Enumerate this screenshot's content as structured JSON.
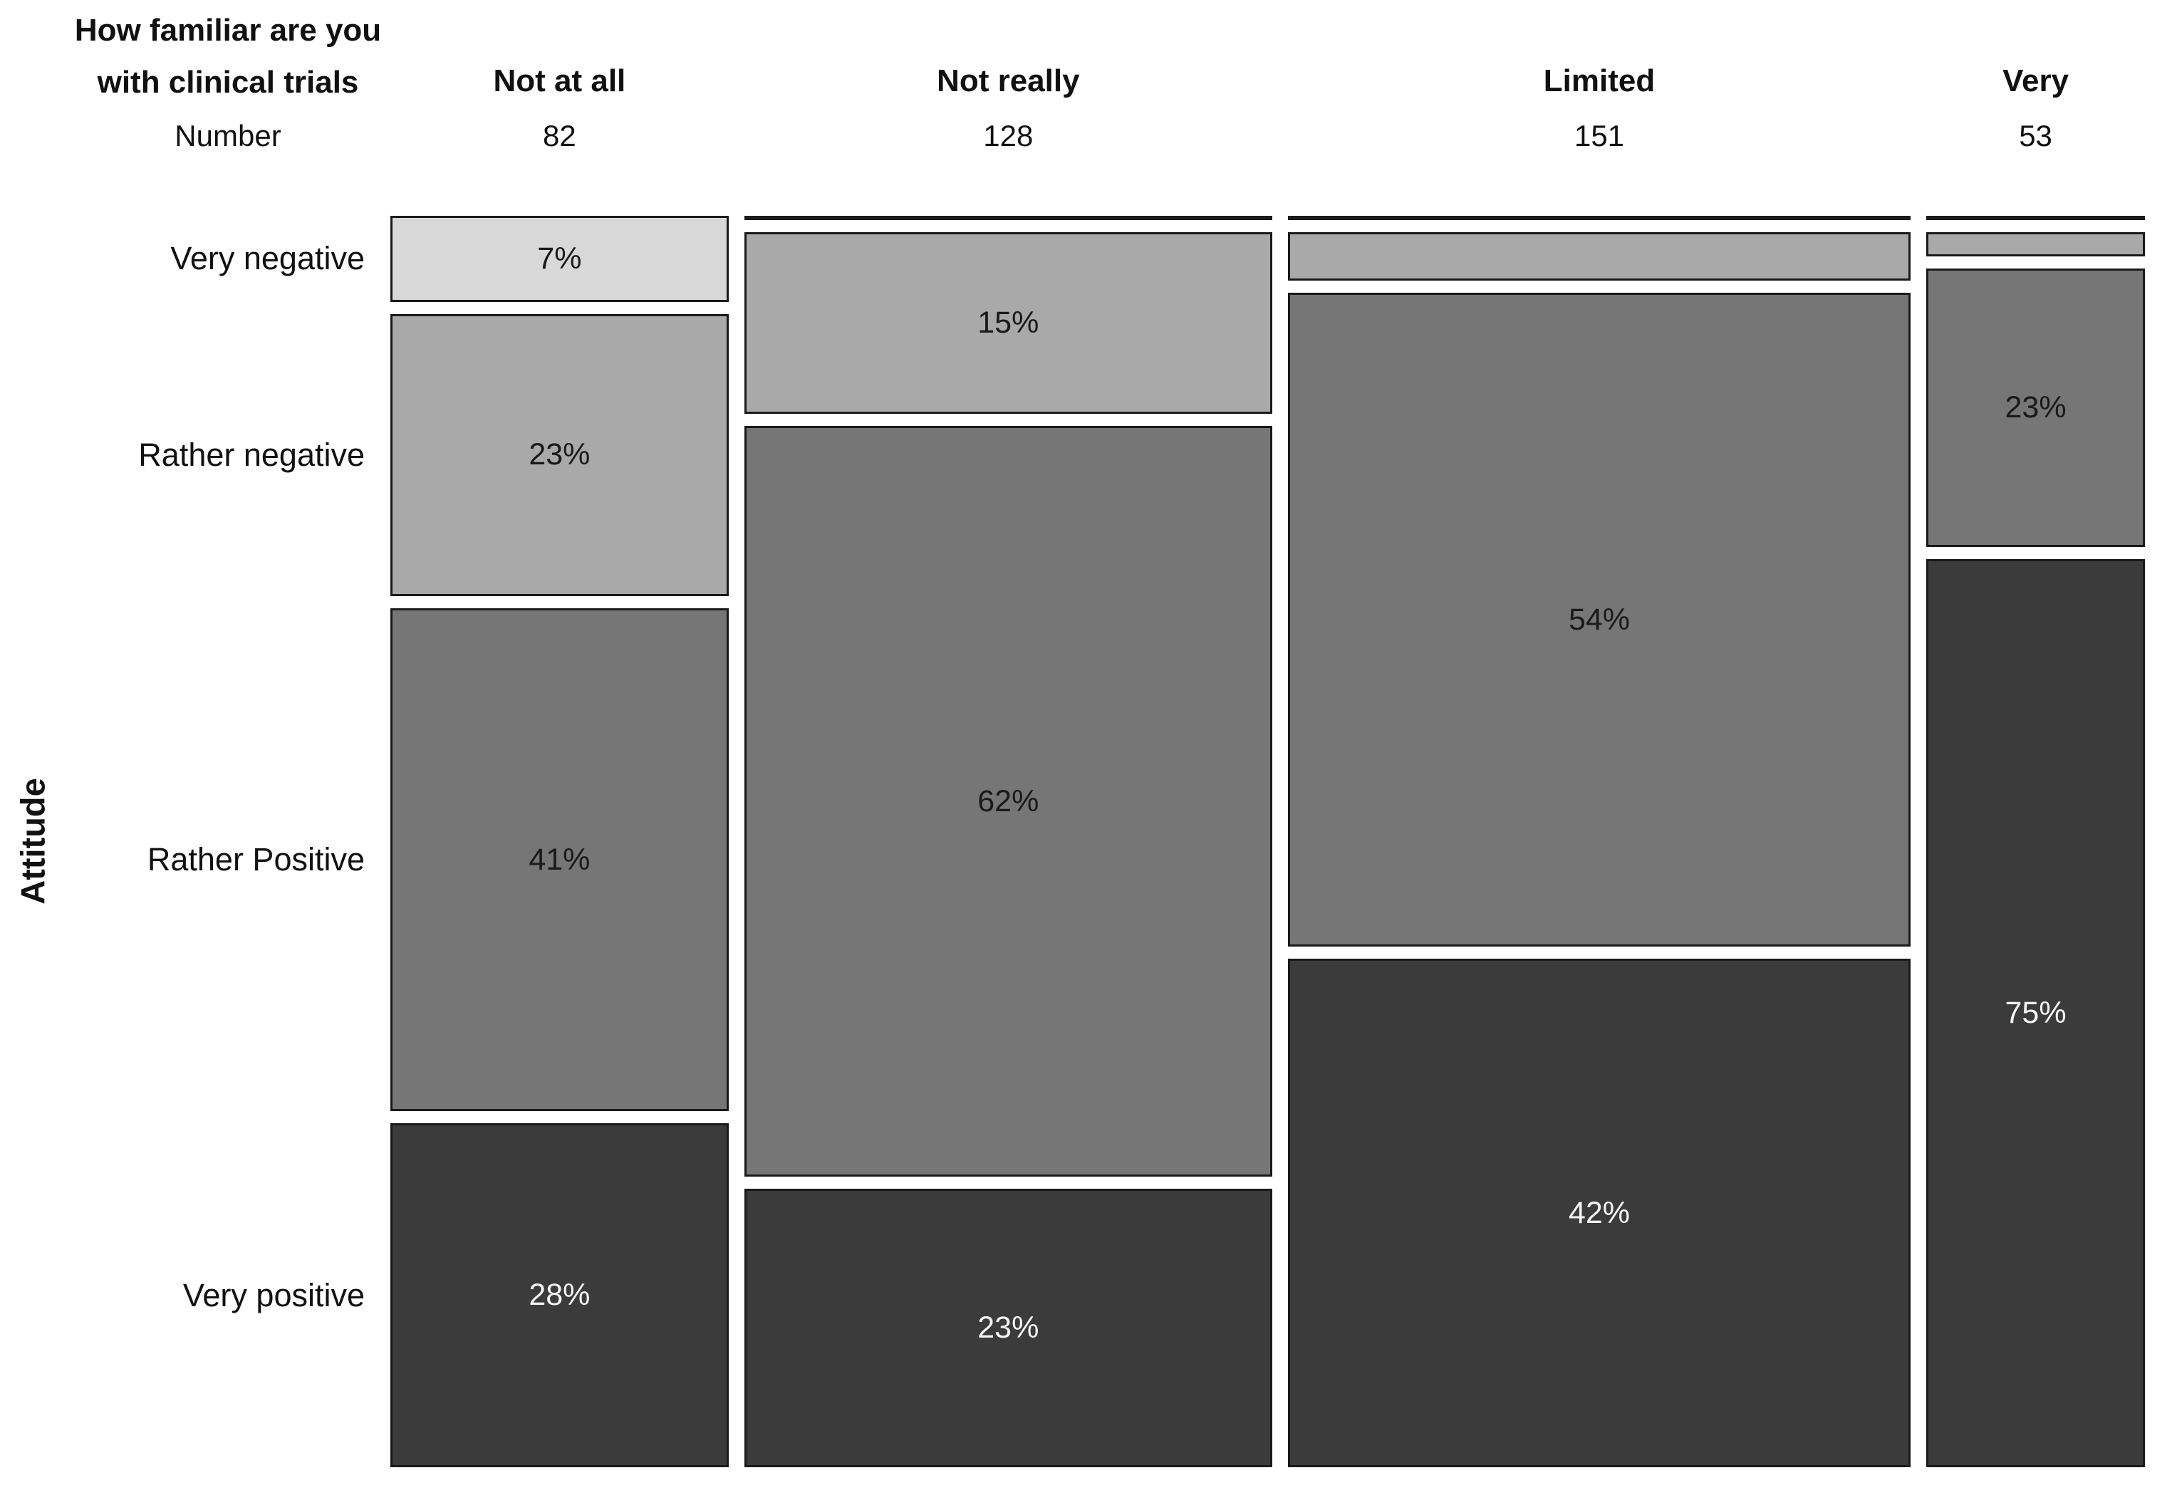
{
  "chart_data": {
    "type": "mosaic",
    "title_lines": [
      "How familiar are you",
      "with clinical trials"
    ],
    "number_label": "Number",
    "ylabel": "Attitude",
    "grid": false,
    "legend_position": "none",
    "rows": [
      {
        "name": "Very negative",
        "color": "#d8d8d8",
        "text_color": "#1a1a1a"
      },
      {
        "name": "Rather negative",
        "color": "#a9a9a9",
        "text_color": "#1a1a1a"
      },
      {
        "name": "Rather Positive",
        "color": "#767676",
        "text_color": "#1a1a1a"
      },
      {
        "name": "Very positive",
        "color": "#3b3b3b",
        "text_color": "#f5f5f5"
      }
    ],
    "columns": [
      {
        "label": "Not at all",
        "count": 82,
        "cells": [
          {
            "percent": 7,
            "label": "7%"
          },
          {
            "percent": 23,
            "label": "23%"
          },
          {
            "percent": 41,
            "label": "41%"
          },
          {
            "percent": 28,
            "label": "28%"
          }
        ]
      },
      {
        "label": "Not really",
        "count": 128,
        "cells": [
          {
            "percent": 0,
            "label": null
          },
          {
            "percent": 15,
            "label": "15%"
          },
          {
            "percent": 62,
            "label": "62%"
          },
          {
            "percent": 23,
            "label": "23%"
          }
        ]
      },
      {
        "label": "Limited",
        "count": 151,
        "cells": [
          {
            "percent": 0,
            "label": null
          },
          {
            "percent": 4,
            "label": null
          },
          {
            "percent": 54,
            "label": "54%"
          },
          {
            "percent": 42,
            "label": "42%"
          }
        ]
      },
      {
        "label": "Very",
        "count": 53,
        "cells": [
          {
            "percent": 0,
            "label": null
          },
          {
            "percent": 2,
            "label": null
          },
          {
            "percent": 23,
            "label": "23%"
          },
          {
            "percent": 75,
            "label": "75%"
          }
        ]
      }
    ]
  },
  "style": {
    "background": "#ffffff",
    "box_border": "#1a1a1a",
    "text_color": "#111111"
  }
}
